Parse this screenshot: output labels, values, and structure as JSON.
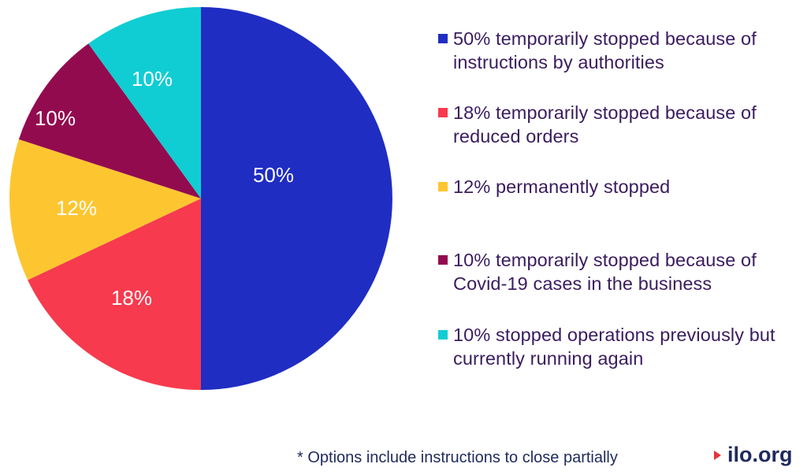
{
  "chart_data": {
    "type": "pie",
    "slices": [
      {
        "label": "50% temporarily stopped because of instructions by authorities",
        "value": 50,
        "data_label": "50%",
        "color": "#1f2dc2"
      },
      {
        "label": "18% temporarily stopped because of reduced orders",
        "value": 18,
        "data_label": "18%",
        "color": "#f73a4e"
      },
      {
        "label": "12% permanently stopped",
        "value": 12,
        "data_label": "12%",
        "color": "#fdc630"
      },
      {
        "label": "10% temporarily stopped because of Covid-19 cases in the business",
        "value": 10,
        "data_label": "10%",
        "color": "#930b4f"
      },
      {
        "label": "10% stopped operations previously but currently running again",
        "value": 10,
        "data_label": "10%",
        "color": "#10cdd3"
      }
    ],
    "start": "12 o'clock",
    "direction": "clockwise",
    "legend_position": "right"
  },
  "legend": [
    {
      "text": "50% temporarily stopped because of instructions by authorities",
      "color": "#1f2dc2"
    },
    {
      "text": "18% temporarily stopped because of reduced orders",
      "color": "#f73a4e"
    },
    {
      "text": "12% permanently stopped",
      "color": "#fdc630"
    },
    {
      "text": "10% temporarily stopped because of Covid-19 cases in the business",
      "color": "#930b4f"
    },
    {
      "text": "10% stopped operations previously but currently running again",
      "color": "#10cdd3"
    }
  ],
  "footnote": "* Options include instructions to close partially",
  "logo": {
    "text": "ilo.org",
    "arrow_color": "#e8323c"
  }
}
